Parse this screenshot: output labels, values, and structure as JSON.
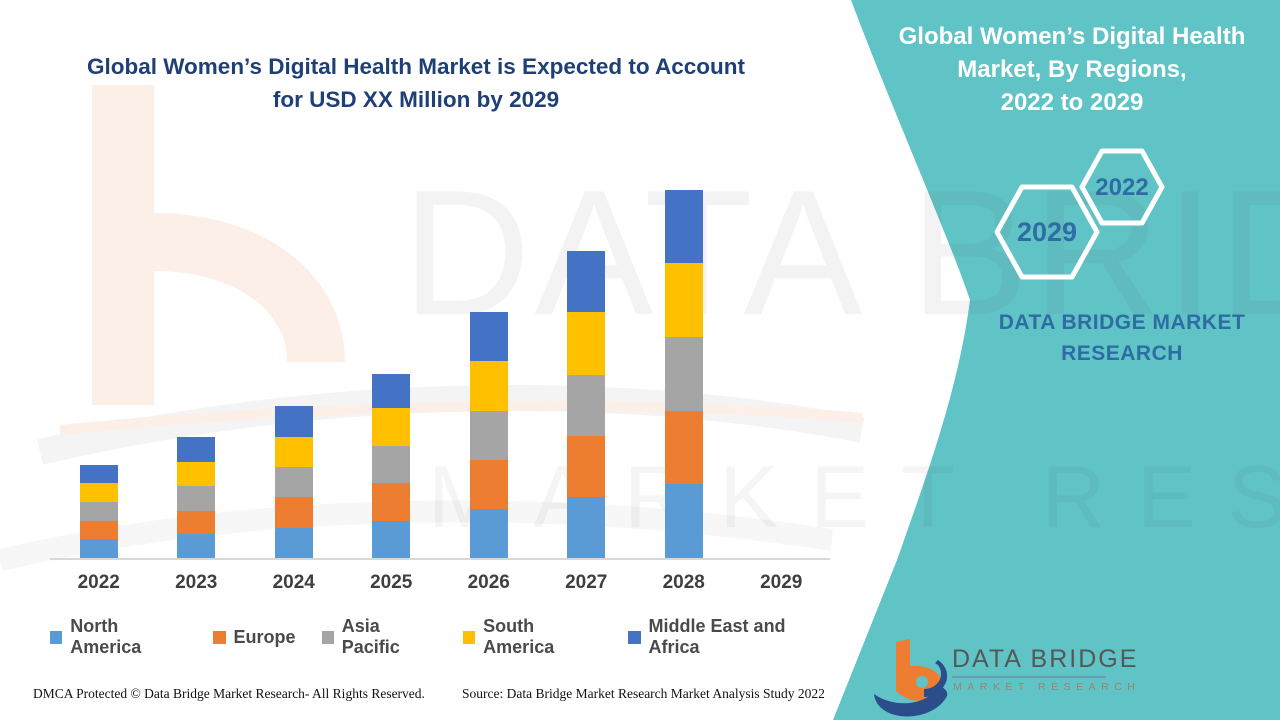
{
  "main_title": {
    "line1": "Global Women’s Digital Health Market is Expected to Account",
    "line2": "for USD XX Million by 2029"
  },
  "side_panel": {
    "title_line1": "Global Women’s Digital Health",
    "title_line2": "Market, By Regions,",
    "title_line3": "2022 to 2029",
    "hexagons": [
      {
        "label": "2029"
      },
      {
        "label": "2022"
      }
    ],
    "brand_line1": "DATA BRIDGE MARKET",
    "brand_line2": "RESEARCH",
    "panel_color": "#60C3C6",
    "text_color": "#2E6DA4"
  },
  "watermark": {
    "line1": "DATA BRIDGE",
    "line2": "MARKET RESEARCH"
  },
  "footer": {
    "dmca": "DMCA Protected © Data Bridge Market Research- All Rights Reserved.",
    "source": "Source: Data Bridge Market Research Market Analysis Study 2022",
    "logo_brand": "DATA BRIDGE",
    "logo_sub": "MARKET RESEARCH"
  },
  "chart_data": {
    "type": "bar",
    "stacked": true,
    "title": "Global Women’s Digital Health Market, By Regions, 2022 to 2029",
    "xlabel": "",
    "ylabel": "",
    "value_axis_visible": false,
    "grid": false,
    "legend_position": "bottom",
    "units": "relative bar heights; actual values shown as USD XX Million (unlabeled)",
    "categories": [
      "2022",
      "2023",
      "2024",
      "2025",
      "2026",
      "2027",
      "2028",
      "2029"
    ],
    "series": [
      {
        "name": "North America",
        "color": "#5B9BD5",
        "values": [
          19,
          24,
          30,
          37,
          49,
          61,
          74,
          0
        ]
      },
      {
        "name": "Europe",
        "color": "#ED7D31",
        "values": [
          18,
          23,
          31,
          38,
          49,
          61,
          73,
          0
        ]
      },
      {
        "name": "Asia Pacific",
        "color": "#A5A5A5",
        "values": [
          19,
          25,
          30,
          37,
          49,
          61,
          74,
          0
        ]
      },
      {
        "name": "South America",
        "color": "#FFC000",
        "values": [
          19,
          24,
          30,
          38,
          50,
          63,
          74,
          0
        ]
      },
      {
        "name": "Middle East and Africa",
        "color": "#4472C4",
        "values": [
          18,
          25,
          31,
          34,
          49,
          61,
          73,
          0
        ]
      }
    ]
  }
}
